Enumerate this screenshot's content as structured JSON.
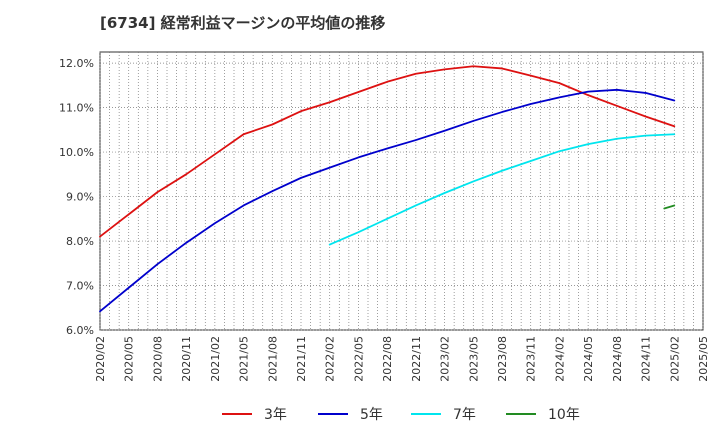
{
  "title": "[6734]  経常利益マージンの平均値の推移",
  "chart_data": {
    "type": "line",
    "x_labels": [
      "2020/02",
      "2020/05",
      "2020/08",
      "2020/11",
      "2021/02",
      "2021/05",
      "2021/08",
      "2021/11",
      "2022/02",
      "2022/05",
      "2022/08",
      "2022/11",
      "2023/02",
      "2023/05",
      "2023/08",
      "2023/11",
      "2024/02",
      "2024/05",
      "2024/08",
      "2024/11",
      "2025/02",
      "2025/05"
    ],
    "ylim": [
      6.0,
      12.25
    ],
    "y_ticks": [
      "6.0%",
      "7.0%",
      "8.0%",
      "9.0%",
      "10.0%",
      "11.0%",
      "12.0%"
    ],
    "y_tick_values": [
      6,
      7,
      8,
      9,
      10,
      11,
      12
    ],
    "grid": true,
    "legend_position": "bottom",
    "series": [
      {
        "name": "3年",
        "color": "#dd1111",
        "x_start": 0,
        "values": [
          8.1,
          8.6,
          9.1,
          9.5,
          9.95,
          10.4,
          10.62,
          10.92,
          11.12,
          11.35,
          11.58,
          11.76,
          11.86,
          11.93,
          11.88,
          11.72,
          11.55,
          11.28,
          11.04,
          10.8,
          10.58
        ]
      },
      {
        "name": "5年",
        "color": "#0000cc",
        "x_start": 0,
        "values": [
          6.42,
          6.95,
          7.48,
          7.96,
          8.4,
          8.8,
          9.12,
          9.42,
          9.65,
          9.88,
          10.08,
          10.27,
          10.48,
          10.7,
          10.9,
          11.08,
          11.23,
          11.36,
          11.4,
          11.33,
          11.16
        ]
      },
      {
        "name": "7年",
        "color": "#00e5ee",
        "x_start": 8,
        "values": [
          7.92,
          8.2,
          8.5,
          8.8,
          9.08,
          9.34,
          9.58,
          9.8,
          10.02,
          10.18,
          10.3,
          10.37,
          10.4
        ]
      },
      {
        "name": "10年",
        "color": "#228b22",
        "x_start": 20,
        "values": [
          8.8
        ]
      }
    ]
  }
}
